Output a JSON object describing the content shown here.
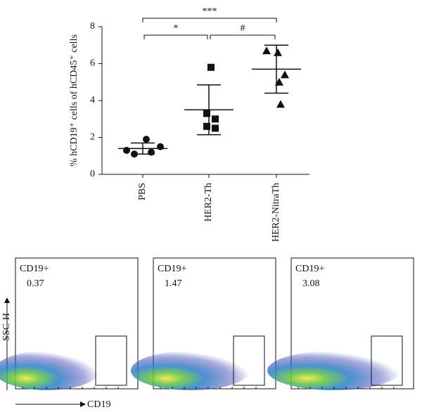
{
  "chart_data": {
    "type": "dotplot",
    "y_label": "% hCD19⁺ cells of hCD45⁺ cells",
    "categories": [
      "PBS",
      "HER2-Th",
      "HER2-NitraTh"
    ],
    "points": [
      [
        1.3,
        1.1,
        1.9,
        1.2,
        1.5
      ],
      [
        5.8,
        3.3,
        3.0,
        2.6,
        2.5
      ],
      [
        6.7,
        6.6,
        5.4,
        5.0,
        3.8
      ]
    ],
    "mean": [
      1.4,
      3.5,
      5.7
    ],
    "sd": [
      0.3,
      1.35,
      1.3
    ],
    "markers": [
      "circle",
      "square",
      "triangle"
    ],
    "color": "#111111",
    "ylim": [
      0,
      8
    ],
    "yticks": [
      0,
      2,
      4,
      6,
      8
    ],
    "brackets": [
      {
        "label": "*",
        "from": 0,
        "to": 1
      },
      {
        "label": "#",
        "from": 1,
        "to": 2
      },
      {
        "label": "***",
        "from": 0,
        "to": 2
      }
    ]
  },
  "flow_panels": [
    {
      "label": "CD19+",
      "value": 0.37
    },
    {
      "label": "CD19+",
      "value": 1.47
    },
    {
      "label": "CD19+",
      "value": 3.08
    }
  ],
  "flow_axes": {
    "y": "SSC-H",
    "x": "CD19"
  }
}
